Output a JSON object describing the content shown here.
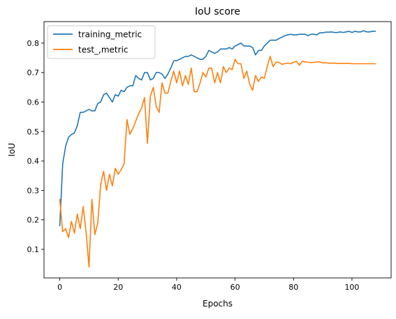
{
  "chart_data": {
    "type": "line",
    "title": "IoU score",
    "xlabel": "Epochs",
    "ylabel": "IoU",
    "xlim": [
      -5.4,
      113.4
    ],
    "ylim": [
      0.003,
      0.873
    ],
    "xticks": [
      0,
      20,
      40,
      60,
      80,
      100
    ],
    "yticks": [
      0.1,
      0.2,
      0.3,
      0.4,
      0.5,
      0.6,
      0.7,
      0.8
    ],
    "legend_position": "top-left",
    "grid": false,
    "series": [
      {
        "name": "training_metric",
        "color": "#1f77b4",
        "values": [
          0.18,
          0.39,
          0.45,
          0.48,
          0.49,
          0.495,
          0.52,
          0.565,
          0.565,
          0.57,
          0.575,
          0.57,
          0.57,
          0.595,
          0.6,
          0.625,
          0.63,
          0.615,
          0.6,
          0.625,
          0.62,
          0.64,
          0.635,
          0.65,
          0.655,
          0.655,
          0.69,
          0.68,
          0.675,
          0.7,
          0.7,
          0.675,
          0.68,
          0.7,
          0.7,
          0.695,
          0.68,
          0.695,
          0.715,
          0.74,
          0.74,
          0.745,
          0.75,
          0.755,
          0.755,
          0.76,
          0.755,
          0.75,
          0.745,
          0.745,
          0.755,
          0.775,
          0.77,
          0.765,
          0.77,
          0.78,
          0.78,
          0.78,
          0.785,
          0.78,
          0.79,
          0.795,
          0.8,
          0.79,
          0.79,
          0.79,
          0.785,
          0.76,
          0.775,
          0.775,
          0.79,
          0.8,
          0.81,
          0.81,
          0.81,
          0.815,
          0.82,
          0.825,
          0.828,
          0.83,
          0.828,
          0.828,
          0.83,
          0.83,
          0.83,
          0.825,
          0.83,
          0.83,
          0.828,
          0.835,
          0.835,
          0.837,
          0.837,
          0.838,
          0.836,
          0.836,
          0.838,
          0.836,
          0.838,
          0.84,
          0.836,
          0.84,
          0.838,
          0.838,
          0.842,
          0.838,
          0.838,
          0.84,
          0.84
        ]
      },
      {
        "name": "test_,metric",
        "color": "#ff7f0e",
        "values": [
          0.27,
          0.16,
          0.17,
          0.14,
          0.195,
          0.155,
          0.22,
          0.17,
          0.245,
          0.16,
          0.04,
          0.27,
          0.15,
          0.19,
          0.32,
          0.365,
          0.3,
          0.355,
          0.315,
          0.375,
          0.355,
          0.37,
          0.39,
          0.54,
          0.49,
          0.51,
          0.535,
          0.56,
          0.58,
          0.615,
          0.46,
          0.62,
          0.65,
          0.585,
          0.565,
          0.665,
          0.63,
          0.63,
          0.67,
          0.705,
          0.665,
          0.705,
          0.655,
          0.69,
          0.66,
          0.715,
          0.635,
          0.635,
          0.665,
          0.7,
          0.685,
          0.715,
          0.715,
          0.665,
          0.7,
          0.665,
          0.72,
          0.7,
          0.715,
          0.71,
          0.745,
          0.73,
          0.73,
          0.68,
          0.705,
          0.66,
          0.64,
          0.69,
          0.67,
          0.685,
          0.68,
          0.72,
          0.755,
          0.72,
          0.735,
          0.735,
          0.728,
          0.73,
          0.732,
          0.73,
          0.735,
          0.738,
          0.725,
          0.738,
          0.736,
          0.735,
          0.734,
          0.735,
          0.736,
          0.736,
          0.733,
          0.733,
          0.732,
          0.732,
          0.732,
          0.731,
          0.731,
          0.731,
          0.731,
          0.731,
          0.73,
          0.73,
          0.73,
          0.73,
          0.73,
          0.73,
          0.73,
          0.73,
          0.73
        ]
      }
    ]
  }
}
